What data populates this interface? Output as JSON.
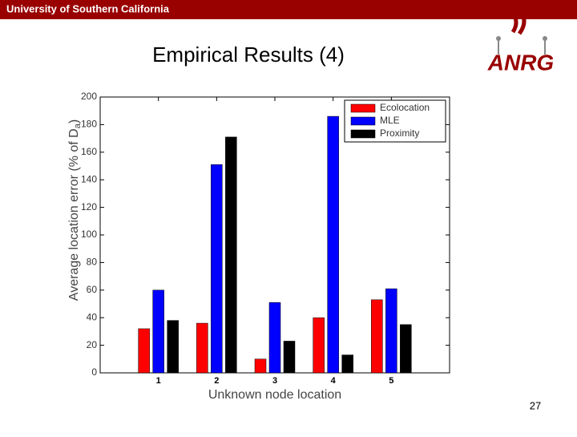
{
  "header": {
    "institution": "University of Southern California",
    "logo": "ANRG",
    "page_number": "27"
  },
  "chart_data": {
    "type": "bar",
    "title": "Empirical Results (4)",
    "xlabel": "Unknown node location",
    "ylabel": [
      "Average location error (% of D",
      "a",
      ")"
    ],
    "categories": [
      "1",
      "2",
      "3",
      "4",
      "5"
    ],
    "series": [
      {
        "name": "Ecolocation",
        "color": "#ff0000",
        "values": [
          32,
          36,
          10,
          40,
          53
        ]
      },
      {
        "name": "MLE",
        "color": "#0000ff",
        "values": [
          60,
          151,
          51,
          186,
          61
        ]
      },
      {
        "name": "Proximity",
        "color": "#000000",
        "values": [
          38,
          171,
          23,
          13,
          35
        ]
      }
    ],
    "ylim": [
      0,
      200
    ],
    "yticks": [
      0,
      20,
      40,
      60,
      80,
      100,
      120,
      140,
      160,
      180,
      200
    ],
    "grid": false,
    "legend": "upper-right"
  }
}
